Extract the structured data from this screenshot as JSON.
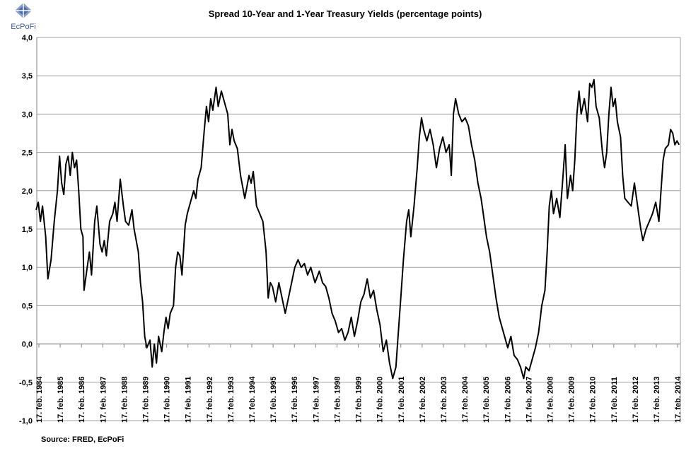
{
  "logo": "EcPoFi",
  "source": "Source: FRED,  EcPoFi",
  "chart_data": {
    "type": "line",
    "title": "Spread 10-Year and 1-Year Treasury Yields (percentage points)",
    "xlim": [
      1984.03,
      2014.26
    ],
    "xticks": [
      {
        "value": 1984.13,
        "label": "17. feb. 1984"
      },
      {
        "value": 1985.13,
        "label": "17. feb. 1985"
      },
      {
        "value": 1986.13,
        "label": "17. feb. 1986"
      },
      {
        "value": 1987.13,
        "label": "17. feb. 1987"
      },
      {
        "value": 1988.13,
        "label": "17. feb. 1988"
      },
      {
        "value": 1989.13,
        "label": "17. feb. 1989"
      },
      {
        "value": 1990.13,
        "label": "17. feb. 1990"
      },
      {
        "value": 1991.13,
        "label": "17. feb. 1991"
      },
      {
        "value": 1992.13,
        "label": "17. feb. 1992"
      },
      {
        "value": 1993.13,
        "label": "17. feb. 1993"
      },
      {
        "value": 1994.13,
        "label": "17. feb. 1994"
      },
      {
        "value": 1995.13,
        "label": "17. feb. 1995"
      },
      {
        "value": 1996.13,
        "label": "17. feb. 1996"
      },
      {
        "value": 1997.13,
        "label": "17. feb. 1997"
      },
      {
        "value": 1998.13,
        "label": "17. feb. 1998"
      },
      {
        "value": 1999.13,
        "label": "17. feb. 1999"
      },
      {
        "value": 2000.13,
        "label": "17. feb. 2000"
      },
      {
        "value": 2001.13,
        "label": "17. feb. 2001"
      },
      {
        "value": 2002.13,
        "label": "17. feb. 2002"
      },
      {
        "value": 2003.13,
        "label": "17. feb. 2003"
      },
      {
        "value": 2004.13,
        "label": "17. feb. 2004"
      },
      {
        "value": 2005.13,
        "label": "17. feb. 2005"
      },
      {
        "value": 2006.13,
        "label": "17. feb. 2006"
      },
      {
        "value": 2007.13,
        "label": "17. feb. 2007"
      },
      {
        "value": 2008.13,
        "label": "17. feb. 2008"
      },
      {
        "value": 2009.13,
        "label": "17. feb. 2009"
      },
      {
        "value": 2010.13,
        "label": "17. feb. 2010"
      },
      {
        "value": 2011.13,
        "label": "17. feb. 2011"
      },
      {
        "value": 2012.13,
        "label": "17. feb. 2012"
      },
      {
        "value": 2013.13,
        "label": "17. feb. 2013"
      },
      {
        "value": 2014.13,
        "label": "17. feb. 2014"
      }
    ],
    "ylim": [
      -1,
      4
    ],
    "yticks": [
      {
        "value": -1,
        "label": "-1,0"
      },
      {
        "value": -0.5,
        "label": "-0,5"
      },
      {
        "value": 0,
        "label": "0,0"
      },
      {
        "value": 0.5,
        "label": "0,5"
      },
      {
        "value": 1,
        "label": "1,0"
      },
      {
        "value": 1.5,
        "label": "1,5"
      },
      {
        "value": 2,
        "label": "2,0"
      },
      {
        "value": 2.5,
        "label": "2,5"
      },
      {
        "value": 3,
        "label": "3,0"
      },
      {
        "value": 3.5,
        "label": "3,5"
      },
      {
        "value": 4,
        "label": "4,0"
      }
    ],
    "grid": true,
    "color": "#000000",
    "x": [
      1984.0,
      1984.1,
      1984.2,
      1984.3,
      1984.45,
      1984.55,
      1984.7,
      1984.85,
      1985.0,
      1985.1,
      1985.2,
      1985.3,
      1985.4,
      1985.5,
      1985.6,
      1985.7,
      1985.8,
      1985.9,
      1986.0,
      1986.1,
      1986.2,
      1986.25,
      1986.4,
      1986.5,
      1986.6,
      1986.75,
      1986.85,
      1987.0,
      1987.1,
      1987.2,
      1987.3,
      1987.45,
      1987.6,
      1987.7,
      1987.8,
      1987.95,
      1988.1,
      1988.2,
      1988.35,
      1988.5,
      1988.6,
      1988.8,
      1988.9,
      1989.0,
      1989.1,
      1989.2,
      1989.35,
      1989.45,
      1989.55,
      1989.65,
      1989.75,
      1989.9,
      1990.0,
      1990.1,
      1990.2,
      1990.3,
      1990.45,
      1990.55,
      1990.65,
      1990.75,
      1990.85,
      1991.0,
      1991.1,
      1991.3,
      1991.4,
      1991.5,
      1991.6,
      1991.75,
      1991.9,
      1992.0,
      1992.1,
      1992.2,
      1992.3,
      1992.45,
      1992.55,
      1992.7,
      1992.85,
      1993.0,
      1993.1,
      1993.2,
      1993.3,
      1993.45,
      1993.6,
      1993.8,
      1994.0,
      1994.1,
      1994.2,
      1994.35,
      1994.5,
      1994.65,
      1994.8,
      1994.9,
      1995.0,
      1995.1,
      1995.25,
      1995.4,
      1995.55,
      1995.7,
      1995.85,
      1996.0,
      1996.15,
      1996.3,
      1996.45,
      1996.6,
      1996.75,
      1996.9,
      1997.1,
      1997.3,
      1997.45,
      1997.6,
      1997.75,
      1997.9,
      1998.05,
      1998.2,
      1998.35,
      1998.5,
      1998.65,
      1998.8,
      1998.95,
      1999.1,
      1999.25,
      1999.4,
      1999.55,
      1999.7,
      1999.85,
      2000.0,
      2000.15,
      2000.3,
      2000.45,
      2000.6,
      2000.75,
      2000.9,
      2001.0,
      2001.1,
      2001.25,
      2001.4,
      2001.5,
      2001.6,
      2001.75,
      2001.9,
      2002.0,
      2002.1,
      2002.2,
      2002.35,
      2002.5,
      2002.65,
      2002.8,
      2002.95,
      2003.1,
      2003.25,
      2003.4,
      2003.5,
      2003.6,
      2003.7,
      2003.85,
      2004.0,
      2004.15,
      2004.3,
      2004.45,
      2004.6,
      2004.75,
      2004.9,
      2005.0,
      2005.15,
      2005.3,
      2005.45,
      2005.6,
      2005.75,
      2005.9,
      2006.0,
      2006.15,
      2006.3,
      2006.45,
      2006.6,
      2006.75,
      2006.9,
      2007.0,
      2007.15,
      2007.3,
      2007.45,
      2007.6,
      2007.75,
      2007.9,
      2008.0,
      2008.1,
      2008.2,
      2008.3,
      2008.45,
      2008.6,
      2008.75,
      2008.85,
      2008.95,
      2009.1,
      2009.2,
      2009.3,
      2009.4,
      2009.5,
      2009.6,
      2009.75,
      2009.9,
      2010.0,
      2010.1,
      2010.2,
      2010.3,
      2010.45,
      2010.6,
      2010.7,
      2010.8,
      2010.9,
      2011.0,
      2011.1,
      2011.2,
      2011.3,
      2011.45,
      2011.55,
      2011.65,
      2011.8,
      2011.95,
      2012.1,
      2012.25,
      2012.4,
      2012.5,
      2012.65,
      2012.8,
      2012.95,
      2013.1,
      2013.25,
      2013.35,
      2013.45,
      2013.55,
      2013.7,
      2013.8,
      2013.9,
      2014.0,
      2014.1,
      2014.2
    ],
    "values": [
      1.75,
      1.85,
      1.6,
      1.8,
      1.4,
      0.85,
      1.1,
      1.6,
      2.0,
      2.45,
      2.1,
      1.95,
      2.35,
      2.45,
      2.2,
      2.5,
      2.3,
      2.4,
      2.0,
      1.5,
      1.4,
      0.7,
      1.0,
      1.2,
      0.9,
      1.6,
      1.8,
      1.3,
      1.2,
      1.35,
      1.15,
      1.6,
      1.7,
      1.85,
      1.6,
      2.15,
      1.8,
      1.6,
      1.55,
      1.75,
      1.5,
      1.2,
      0.8,
      0.55,
      0.1,
      -0.05,
      0.05,
      -0.3,
      0.0,
      -0.25,
      0.1,
      -0.1,
      0.15,
      0.35,
      0.2,
      0.4,
      0.5,
      1.0,
      1.2,
      1.15,
      0.9,
      1.55,
      1.7,
      1.9,
      2.0,
      1.9,
      2.15,
      2.3,
      2.8,
      3.1,
      2.9,
      3.2,
      3.05,
      3.35,
      3.1,
      3.3,
      3.15,
      3.0,
      2.6,
      2.8,
      2.65,
      2.55,
      2.2,
      1.9,
      2.2,
      2.1,
      2.25,
      1.8,
      1.7,
      1.6,
      1.2,
      0.6,
      0.8,
      0.75,
      0.55,
      0.8,
      0.6,
      0.4,
      0.6,
      0.8,
      1.0,
      1.1,
      1.0,
      1.05,
      0.9,
      1.0,
      0.8,
      0.95,
      0.8,
      0.75,
      0.6,
      0.4,
      0.3,
      0.15,
      0.2,
      0.05,
      0.15,
      0.35,
      0.1,
      0.3,
      0.55,
      0.65,
      0.85,
      0.6,
      0.7,
      0.45,
      0.25,
      -0.1,
      0.05,
      -0.25,
      -0.45,
      -0.3,
      0.1,
      0.5,
      1.1,
      1.6,
      1.75,
      1.4,
      1.8,
      2.3,
      2.7,
      2.95,
      2.8,
      2.65,
      2.8,
      2.6,
      2.3,
      2.55,
      2.7,
      2.5,
      2.6,
      2.2,
      3.0,
      3.2,
      3.0,
      2.9,
      2.95,
      2.85,
      2.6,
      2.4,
      2.1,
      1.9,
      1.7,
      1.4,
      1.2,
      0.9,
      0.6,
      0.35,
      0.2,
      0.1,
      -0.05,
      0.1,
      -0.15,
      -0.2,
      -0.3,
      -0.45,
      -0.3,
      -0.35,
      -0.2,
      -0.05,
      0.15,
      0.5,
      0.7,
      1.2,
      1.8,
      2.0,
      1.7,
      1.9,
      1.65,
      2.2,
      2.6,
      1.9,
      2.2,
      2.0,
      2.4,
      3.0,
      3.3,
      3.0,
      3.2,
      2.9,
      3.4,
      3.35,
      3.45,
      3.1,
      2.95,
      2.5,
      2.3,
      2.5,
      3.0,
      3.35,
      3.1,
      3.2,
      2.9,
      2.7,
      2.2,
      1.9,
      1.85,
      1.8,
      2.1,
      1.8,
      1.5,
      1.35,
      1.5,
      1.6,
      1.7,
      1.85,
      1.6,
      2.0,
      2.4,
      2.55,
      2.6,
      2.8,
      2.75,
      2.6,
      2.65,
      2.6
    ]
  }
}
